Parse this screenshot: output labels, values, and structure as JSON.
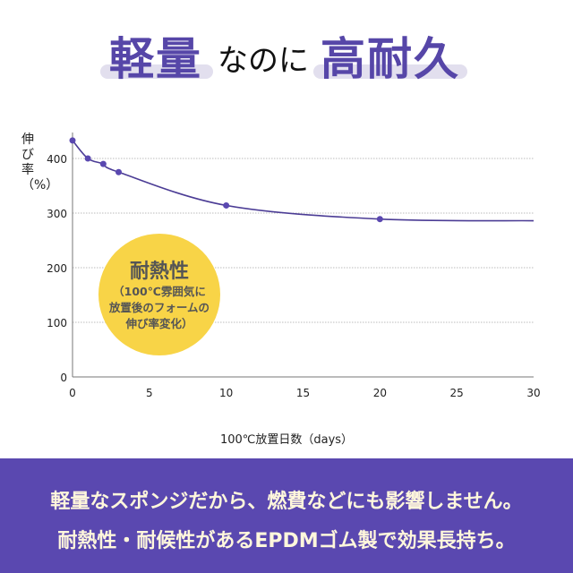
{
  "header": {
    "title_part1": "軽量",
    "title_part2": "なのに",
    "title_part3": "高耐久"
  },
  "badge": {
    "title": "耐熱性",
    "line1": "（100℃雰囲気に",
    "line2": "放置後のフォームの",
    "line3": "伸び率変化）"
  },
  "footer": {
    "line1": "軽量なスポンジだから、燃費などにも影響しません。",
    "line2": "耐熱性・耐候性があるEPDMゴム製で効果長持ち。"
  },
  "colors": {
    "accent": "#5a48b0",
    "line": "#4b3c95",
    "badge": "#f8d447",
    "highlight": "#e2dfee"
  },
  "chart_data": {
    "type": "line",
    "xlabel": "100℃放置日数（days）",
    "ylabel": "伸び率（%）",
    "xlim": [
      0,
      30
    ],
    "ylim": [
      0,
      440
    ],
    "xticks": [
      0,
      5,
      10,
      15,
      20,
      25,
      30
    ],
    "yticks": [
      0,
      100,
      200,
      300,
      400
    ],
    "grid": true,
    "points": [
      {
        "x": 0,
        "y": 433
      },
      {
        "x": 1,
        "y": 400
      },
      {
        "x": 2,
        "y": 390
      },
      {
        "x": 3,
        "y": 375
      },
      {
        "x": 10,
        "y": 314
      },
      {
        "x": 20,
        "y": 289
      }
    ],
    "curve_end": {
      "x": 30,
      "y": 286
    }
  }
}
